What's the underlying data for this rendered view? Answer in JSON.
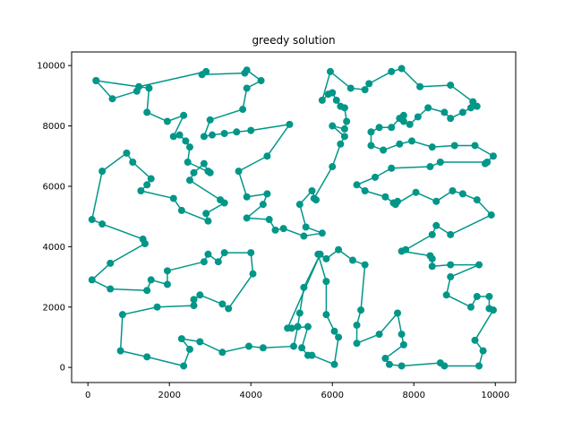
{
  "chart_data": {
    "type": "line",
    "title": "greedy solution",
    "xlabel": "",
    "ylabel": "",
    "xlim": [
      -400,
      10500
    ],
    "ylim": [
      -500,
      10450
    ],
    "x_ticks": [
      0,
      2000,
      4000,
      6000,
      8000,
      10000
    ],
    "y_ticks": [
      0,
      2000,
      4000,
      6000,
      8000,
      10000
    ],
    "x_tick_labels": [
      "0",
      "2000",
      "4000",
      "6000",
      "8000",
      "10000"
    ],
    "y_tick_labels": [
      "0",
      "2000",
      "4000",
      "6000",
      "8000",
      "10000"
    ],
    "grid": false,
    "colors": {
      "line": "#009688",
      "marker": "#009688"
    },
    "series": [
      {
        "name": "",
        "marker": "circle",
        "points": [
          [
            200,
            9500
          ],
          [
            600,
            8900
          ],
          [
            1200,
            9150
          ],
          [
            1250,
            9300
          ],
          [
            2900,
            9800
          ],
          [
            2800,
            9700
          ],
          [
            3850,
            9750
          ],
          [
            3900,
            9850
          ],
          [
            4250,
            9500
          ],
          [
            3900,
            9250
          ],
          [
            3800,
            8550
          ],
          [
            3000,
            8200
          ],
          [
            2850,
            7650
          ],
          [
            3050,
            7700
          ],
          [
            3350,
            7750
          ],
          [
            3650,
            7800
          ],
          [
            4000,
            7850
          ],
          [
            4950,
            8050
          ],
          [
            4400,
            7000
          ],
          [
            3700,
            6500
          ],
          [
            3900,
            5650
          ],
          [
            4400,
            5750
          ],
          [
            4300,
            5400
          ],
          [
            3900,
            4950
          ],
          [
            4450,
            4900
          ],
          [
            4600,
            4550
          ],
          [
            4800,
            4600
          ],
          [
            5300,
            4350
          ],
          [
            5750,
            4450
          ],
          [
            5350,
            4650
          ],
          [
            5200,
            5400
          ],
          [
            5500,
            5850
          ],
          [
            5600,
            5550
          ],
          [
            5550,
            5600
          ],
          [
            6000,
            6650
          ],
          [
            6200,
            7400
          ],
          [
            6300,
            7650
          ],
          [
            6000,
            8000
          ],
          [
            6300,
            7900
          ],
          [
            6350,
            8150
          ],
          [
            6300,
            8600
          ],
          [
            6200,
            8650
          ],
          [
            6100,
            8850
          ],
          [
            6000,
            9100
          ],
          [
            5900,
            9050
          ],
          [
            5750,
            8850
          ],
          [
            5950,
            9800
          ],
          [
            6450,
            9250
          ],
          [
            6800,
            9200
          ],
          [
            6900,
            9400
          ],
          [
            7450,
            9800
          ],
          [
            7700,
            9900
          ],
          [
            8150,
            9300
          ],
          [
            8900,
            9350
          ],
          [
            9450,
            8800
          ],
          [
            9550,
            8650
          ],
          [
            9400,
            8600
          ],
          [
            9200,
            8450
          ],
          [
            8900,
            8250
          ],
          [
            8750,
            8450
          ],
          [
            8350,
            8600
          ],
          [
            8100,
            8300
          ],
          [
            7900,
            8050
          ],
          [
            7750,
            8150
          ],
          [
            7750,
            8350
          ],
          [
            7650,
            8250
          ],
          [
            7450,
            7950
          ],
          [
            7150,
            7950
          ],
          [
            6950,
            7800
          ],
          [
            6950,
            7350
          ],
          [
            7250,
            7200
          ],
          [
            7650,
            7400
          ],
          [
            7950,
            7500
          ],
          [
            8450,
            7300
          ],
          [
            9000,
            7350
          ],
          [
            9500,
            7350
          ],
          [
            9950,
            7000
          ],
          [
            9750,
            6750
          ],
          [
            9800,
            6800
          ],
          [
            8650,
            6800
          ],
          [
            8400,
            6650
          ],
          [
            7450,
            6600
          ],
          [
            7050,
            6300
          ],
          [
            6600,
            6050
          ],
          [
            6800,
            5850
          ],
          [
            7300,
            5650
          ],
          [
            7500,
            5450
          ],
          [
            7600,
            5500
          ],
          [
            7550,
            5400
          ],
          [
            8050,
            5800
          ],
          [
            8550,
            5500
          ],
          [
            8950,
            5850
          ],
          [
            9200,
            5750
          ],
          [
            9550,
            5550
          ],
          [
            9900,
            5050
          ],
          [
            8900,
            4400
          ],
          [
            8550,
            4700
          ],
          [
            8450,
            4400
          ],
          [
            7800,
            3900
          ],
          [
            7700,
            3850
          ],
          [
            8400,
            3700
          ],
          [
            8450,
            3600
          ],
          [
            8450,
            3350
          ],
          [
            8900,
            3400
          ],
          [
            9600,
            3400
          ],
          [
            8900,
            3000
          ],
          [
            8800,
            2400
          ],
          [
            9400,
            2000
          ],
          [
            9550,
            2350
          ],
          [
            9850,
            2350
          ],
          [
            9850,
            1950
          ],
          [
            9950,
            1900
          ],
          [
            9500,
            900
          ],
          [
            9700,
            550
          ],
          [
            9600,
            50
          ],
          [
            8750,
            50
          ],
          [
            8650,
            150
          ],
          [
            7700,
            50
          ],
          [
            7400,
            100
          ],
          [
            7300,
            300
          ],
          [
            7750,
            750
          ],
          [
            7700,
            1100
          ],
          [
            7600,
            1800
          ],
          [
            7150,
            1100
          ],
          [
            6600,
            800
          ],
          [
            6600,
            1400
          ],
          [
            6700,
            1900
          ],
          [
            6800,
            3400
          ],
          [
            6500,
            3550
          ],
          [
            6150,
            3900
          ],
          [
            5850,
            3600
          ],
          [
            5650,
            3750
          ],
          [
            5850,
            2850
          ],
          [
            5850,
            1750
          ],
          [
            6050,
            1200
          ],
          [
            6150,
            1000
          ],
          [
            6050,
            100
          ],
          [
            5500,
            400
          ],
          [
            5400,
            400
          ],
          [
            5250,
            650
          ],
          [
            5400,
            1350
          ],
          [
            5000,
            1300
          ],
          [
            5150,
            1350
          ],
          [
            5200,
            1800
          ],
          [
            5300,
            2650
          ],
          [
            5700,
            3750
          ],
          [
            4900,
            1300
          ],
          [
            5150,
            1350
          ],
          [
            5050,
            700
          ],
          [
            4300,
            650
          ],
          [
            3950,
            700
          ],
          [
            3300,
            500
          ],
          [
            2750,
            850
          ],
          [
            2300,
            950
          ],
          [
            2500,
            600
          ],
          [
            2350,
            50
          ],
          [
            1450,
            350
          ],
          [
            800,
            550
          ],
          [
            850,
            1750
          ],
          [
            1700,
            2000
          ],
          [
            2600,
            2050
          ],
          [
            2600,
            2250
          ],
          [
            2750,
            2400
          ],
          [
            3300,
            2100
          ],
          [
            3450,
            1950
          ],
          [
            4050,
            3100
          ],
          [
            4000,
            3800
          ],
          [
            3350,
            3800
          ],
          [
            3200,
            3500
          ],
          [
            2950,
            3750
          ],
          [
            2850,
            3500
          ],
          [
            1950,
            3200
          ],
          [
            1950,
            2750
          ],
          [
            1550,
            2900
          ],
          [
            1450,
            2550
          ],
          [
            550,
            2600
          ],
          [
            100,
            2900
          ],
          [
            550,
            3450
          ],
          [
            1400,
            4100
          ],
          [
            1350,
            4250
          ],
          [
            350,
            4750
          ],
          [
            100,
            4900
          ],
          [
            350,
            6500
          ],
          [
            950,
            7100
          ],
          [
            1100,
            6800
          ],
          [
            1550,
            6250
          ],
          [
            1450,
            6050
          ],
          [
            1300,
            5850
          ],
          [
            2100,
            5600
          ],
          [
            2300,
            5200
          ],
          [
            2950,
            4850
          ],
          [
            2900,
            5100
          ],
          [
            3350,
            5450
          ],
          [
            3250,
            5550
          ],
          [
            2500,
            6200
          ],
          [
            2600,
            6450
          ],
          [
            2850,
            6750
          ],
          [
            2950,
            6500
          ],
          [
            3000,
            6450
          ],
          [
            2450,
            6800
          ],
          [
            2500,
            7300
          ],
          [
            2400,
            7500
          ],
          [
            2250,
            7700
          ],
          [
            2100,
            7650
          ],
          [
            2350,
            8350
          ],
          [
            1950,
            8150
          ],
          [
            1450,
            8450
          ],
          [
            1500,
            9250
          ],
          [
            200,
            9500
          ]
        ]
      }
    ]
  }
}
